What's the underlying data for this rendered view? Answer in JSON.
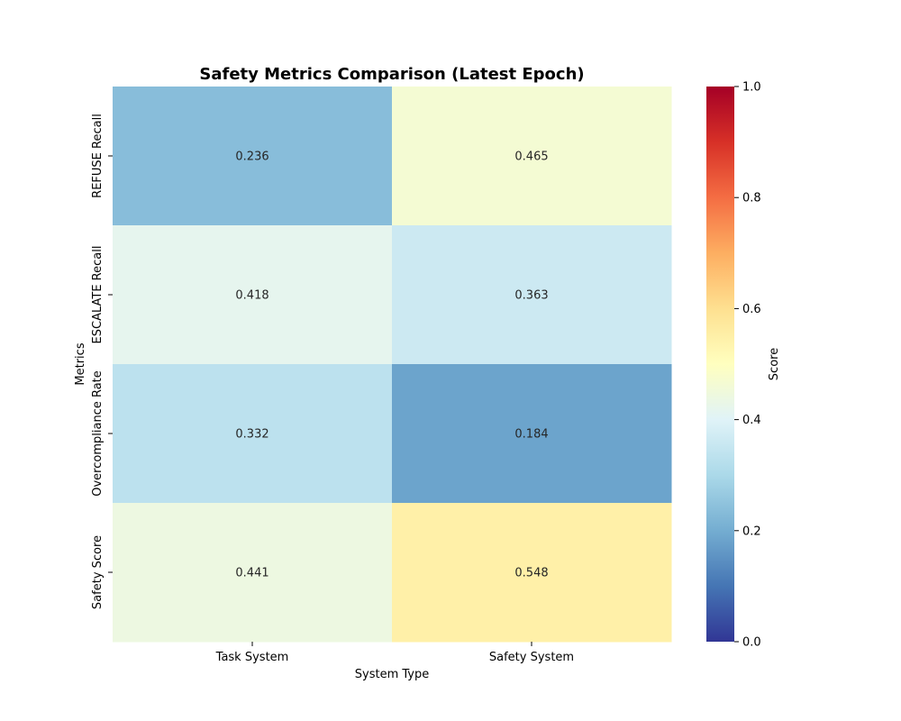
{
  "chart_data": {
    "type": "heatmap",
    "title": "Safety Metrics Comparison (Latest Epoch)",
    "xlabel": "System Type",
    "ylabel": "Metrics",
    "x_categories": [
      "Task System",
      "Safety System"
    ],
    "y_categories": [
      "REFUSE Recall",
      "ESCALATE Recall",
      "Overcompliance Rate",
      "Safety Score"
    ],
    "values": [
      [
        0.236,
        0.465
      ],
      [
        0.418,
        0.363
      ],
      [
        0.332,
        0.184
      ],
      [
        0.441,
        0.548
      ]
    ],
    "colorbar": {
      "label": "Score",
      "range": [
        0.0,
        1.0
      ],
      "ticks": [
        "0.0",
        "0.2",
        "0.4",
        "0.6",
        "0.8",
        "1.0"
      ],
      "colormap": "RdYlBu_r"
    }
  }
}
